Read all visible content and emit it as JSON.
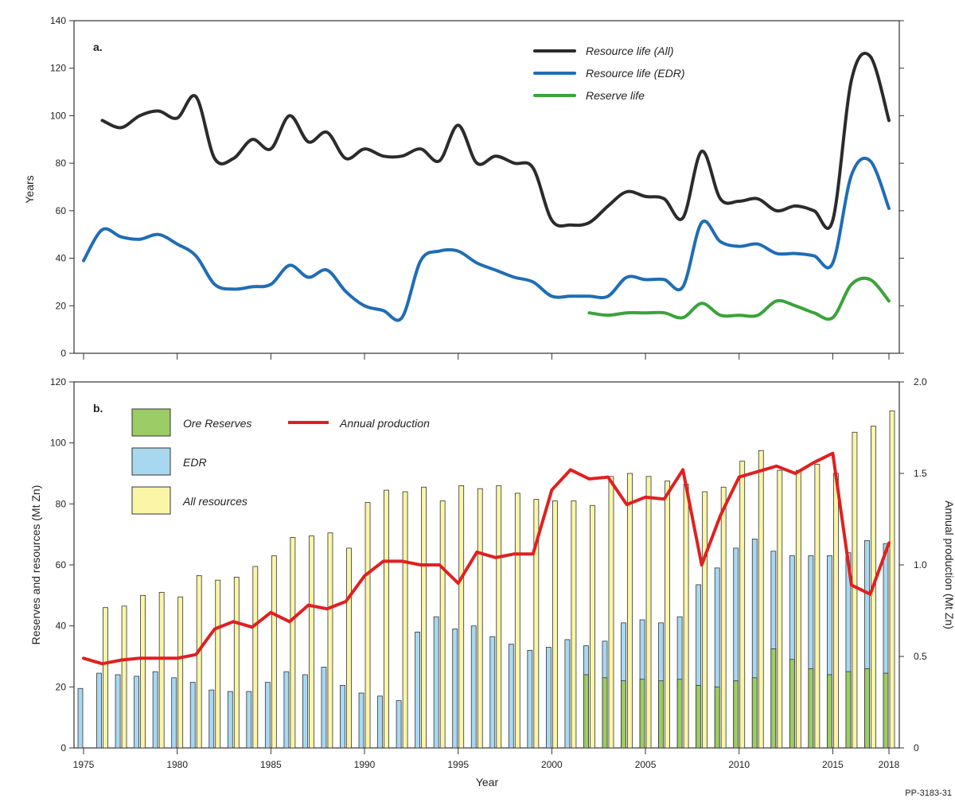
{
  "figure_code": "PP-3183-31",
  "chart_data": [
    {
      "panel": "a.",
      "type": "line",
      "ylabel": "Years",
      "xlabel": "",
      "ylim": [
        0,
        140
      ],
      "yticks": [
        0,
        20,
        40,
        60,
        80,
        100,
        120,
        140
      ],
      "xlim": [
        1975,
        2018
      ],
      "series": [
        {
          "name": "Resource life (All)",
          "color": "#2b2b2b",
          "x": [
            1976,
            1977,
            1978,
            1979,
            1980,
            1981,
            1982,
            1983,
            1984,
            1985,
            1986,
            1987,
            1988,
            1989,
            1990,
            1991,
            1992,
            1993,
            1994,
            1995,
            1996,
            1997,
            1998,
            1999,
            2000,
            2001,
            2002,
            2003,
            2004,
            2005,
            2006,
            2007,
            2008,
            2009,
            2010,
            2011,
            2012,
            2013,
            2014,
            2015,
            2016,
            2017,
            2018
          ],
          "values": [
            98,
            95,
            100,
            102,
            99,
            108,
            82,
            82,
            90,
            86,
            100,
            89,
            93,
            82,
            86,
            83,
            83,
            86,
            81,
            96,
            80,
            83,
            80,
            78,
            56,
            54,
            55,
            62,
            68,
            66,
            65,
            57,
            85,
            65,
            64,
            65,
            60,
            62,
            60,
            56,
            115,
            125,
            98
          ]
        },
        {
          "name": "Resource life (EDR)",
          "color": "#1f6db5",
          "x": [
            1975,
            1976,
            1977,
            1978,
            1979,
            1980,
            1981,
            1982,
            1983,
            1984,
            1985,
            1986,
            1987,
            1988,
            1989,
            1990,
            1991,
            1992,
            1993,
            1994,
            1995,
            1996,
            1997,
            1998,
            1999,
            2000,
            2001,
            2002,
            2003,
            2004,
            2005,
            2006,
            2007,
            2008,
            2009,
            2010,
            2011,
            2012,
            2013,
            2014,
            2015,
            2016,
            2017,
            2018
          ],
          "values": [
            39,
            52,
            49,
            48,
            50,
            46,
            41,
            29,
            27,
            28,
            29,
            37,
            32,
            35,
            26,
            20,
            18,
            15,
            39,
            43,
            43,
            38,
            35,
            32,
            30,
            24,
            24,
            24,
            24,
            32,
            31,
            31,
            28,
            55,
            47,
            45,
            46,
            42,
            42,
            41,
            38,
            75,
            81,
            61
          ]
        },
        {
          "name": "Reserve life",
          "color": "#3aa33a",
          "x": [
            2002,
            2003,
            2004,
            2005,
            2006,
            2007,
            2008,
            2009,
            2010,
            2011,
            2012,
            2013,
            2014,
            2015,
            2016,
            2017,
            2018
          ],
          "values": [
            17,
            16,
            17,
            17,
            17,
            15,
            21,
            16,
            16,
            16,
            22,
            20,
            17,
            15,
            29,
            31,
            22
          ]
        }
      ],
      "legend": [
        "Resource life (All)",
        "Resource life (EDR)",
        "Reserve life"
      ]
    },
    {
      "panel": "b.",
      "type": "bar",
      "xlabel": "Year",
      "ylabel": "Reserves and resources (Mt Zn)",
      "y2label": "Annual production (Mt Zn)",
      "ylim": [
        0,
        120
      ],
      "yticks": [
        0,
        20,
        40,
        60,
        80,
        100,
        120
      ],
      "y2lim": [
        0,
        2.0
      ],
      "y2ticks": [
        "0",
        "0.5",
        "1.0",
        "1.5",
        "2.0"
      ],
      "xticks": [
        1975,
        1980,
        1985,
        1990,
        1995,
        2000,
        2005,
        2010,
        2015,
        2018
      ],
      "categories": [
        1975,
        1976,
        1977,
        1978,
        1979,
        1980,
        1981,
        1982,
        1983,
        1984,
        1985,
        1986,
        1987,
        1988,
        1989,
        1990,
        1991,
        1992,
        1993,
        1994,
        1995,
        1996,
        1997,
        1998,
        1999,
        2000,
        2001,
        2002,
        2003,
        2004,
        2005,
        2006,
        2007,
        2008,
        2009,
        2010,
        2011,
        2012,
        2013,
        2014,
        2015,
        2016,
        2017,
        2018
      ],
      "series": [
        {
          "name": "Ore Reserves",
          "color": "#9ccc65",
          "values": [
            null,
            null,
            null,
            null,
            null,
            null,
            null,
            null,
            null,
            null,
            null,
            null,
            null,
            null,
            null,
            null,
            null,
            null,
            null,
            null,
            null,
            null,
            null,
            null,
            null,
            null,
            null,
            24,
            23,
            22,
            22.5,
            22,
            22.5,
            20.5,
            20,
            22,
            23,
            32.5,
            29,
            26,
            24,
            25,
            26,
            24.5
          ]
        },
        {
          "name": "EDR",
          "color": "#a8d8f0",
          "values": [
            19.5,
            24.5,
            24,
            23.5,
            25,
            23,
            21.5,
            19,
            18.5,
            18.5,
            21.5,
            25,
            24,
            26.5,
            20.5,
            18,
            17,
            15.5,
            38,
            43,
            39,
            40,
            36.5,
            34,
            32,
            33,
            35.5,
            33.5,
            35,
            41,
            42,
            41,
            43,
            53.5,
            59,
            65.5,
            68.5,
            64.5,
            63,
            63,
            63,
            64,
            68,
            67
          ]
        },
        {
          "name": "All resources",
          "color": "#fbf5a8",
          "values": [
            null,
            46,
            46.5,
            50,
            51,
            49.5,
            56.5,
            55,
            56,
            59.5,
            63,
            69,
            69.5,
            70.5,
            65.5,
            80.5,
            84.5,
            84,
            85.5,
            81,
            86,
            85,
            86,
            83.5,
            81.5,
            81,
            81,
            79.5,
            89,
            90,
            89,
            87.5,
            86.5,
            84,
            85.5,
            94,
            97.5,
            91,
            91,
            93,
            90,
            103.5,
            105.5,
            110.5
          ]
        },
        {
          "name": "Annual production",
          "color": "#e02020",
          "axis": "right",
          "type": "line",
          "values": [
            0.49,
            0.46,
            0.48,
            0.49,
            0.49,
            0.49,
            0.51,
            0.65,
            0.69,
            0.66,
            0.74,
            0.69,
            0.78,
            0.76,
            0.8,
            0.94,
            1.02,
            1.02,
            1.0,
            1.0,
            0.9,
            1.07,
            1.04,
            1.06,
            1.06,
            1.41,
            1.52,
            1.47,
            1.48,
            1.33,
            1.37,
            1.36,
            1.52,
            1.0,
            1.27,
            1.48,
            1.51,
            1.54,
            1.5,
            1.56,
            1.61,
            0.89,
            0.84,
            1.12
          ]
        }
      ],
      "legend": [
        "Ore Reserves",
        "EDR",
        "All resources",
        "Annual production"
      ]
    }
  ]
}
